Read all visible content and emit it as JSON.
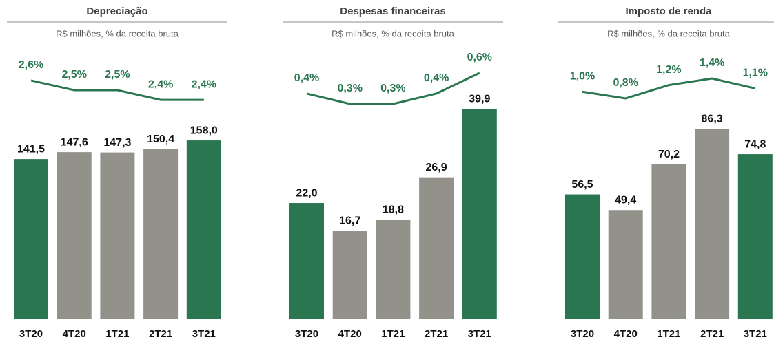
{
  "chart_data": [
    {
      "type": "bar-line",
      "title": "Depreciação",
      "subtitle": "R$ milhões, % da receita bruta",
      "categories": [
        "3T20",
        "4T20",
        "1T21",
        "2T21",
        "3T21"
      ],
      "ylim": [
        0,
        191
      ],
      "y2lim": [
        2.33,
        2.72
      ],
      "series": [
        {
          "colors": [
            "#2a7650",
            "#92918a",
            "#92918a",
            "#92918a",
            "#2a7650"
          ],
          "values": [
            141.5,
            147.6,
            147.3,
            150.4,
            158.0
          ],
          "value_labels": [
            "141,5",
            "147,6",
            "147,3",
            "150,4",
            "158,0"
          ]
        },
        {
          "color": "#2a7650",
          "axis": "y2",
          "values": [
            2.6,
            2.5,
            2.5,
            2.4,
            2.4
          ],
          "value_labels": [
            "2,6%",
            "2,5%",
            "2,5%",
            "2,4%",
            "2,4%"
          ]
        }
      ]
    },
    {
      "type": "bar-line",
      "title": "Despesas financeiras",
      "subtitle": "R$ milhões, % da receita bruta",
      "categories": [
        "3T20",
        "4T20",
        "1T21",
        "2T21",
        "3T21"
      ],
      "ylim": [
        0,
        41
      ],
      "y2lim": [
        0.273,
        0.64
      ],
      "series": [
        {
          "colors": [
            "#2a7650",
            "#92918a",
            "#92918a",
            "#92918a",
            "#2a7650"
          ],
          "values": [
            22.0,
            16.7,
            18.8,
            26.9,
            39.9
          ],
          "value_labels": [
            "22,0",
            "16,7",
            "18,8",
            "26,9",
            "39,9"
          ]
        },
        {
          "color": "#2a7650",
          "axis": "y2",
          "values": [
            0.4,
            0.3,
            0.3,
            0.4,
            0.6
          ],
          "value_labels": [
            "0,4%",
            "0,3%",
            "0,3%",
            "0,4%",
            "0,6%"
          ]
        }
      ]
    },
    {
      "type": "bar-line",
      "title": "Imposto de renda",
      "subtitle": "R$ milhões, % da receita bruta",
      "categories": [
        "3T20",
        "4T20",
        "1T21",
        "2T21",
        "3T21"
      ],
      "ylim": [
        0,
        98
      ],
      "y2lim": [
        0.55,
        1.69
      ],
      "series": [
        {
          "colors": [
            "#2a7650",
            "#92918a",
            "#92918a",
            "#92918a",
            "#2a7650"
          ],
          "values": [
            56.5,
            49.4,
            70.2,
            86.3,
            74.8
          ],
          "value_labels": [
            "56,5",
            "49,4",
            "70,2",
            "86,3",
            "74,8"
          ]
        },
        {
          "color": "#2a7650",
          "axis": "y2",
          "values": [
            1.0,
            0.8,
            1.2,
            1.4,
            1.1
          ],
          "value_labels": [
            "1,0%",
            "0,8%",
            "1,2%",
            "1,4%",
            "1,1%"
          ]
        }
      ]
    }
  ]
}
